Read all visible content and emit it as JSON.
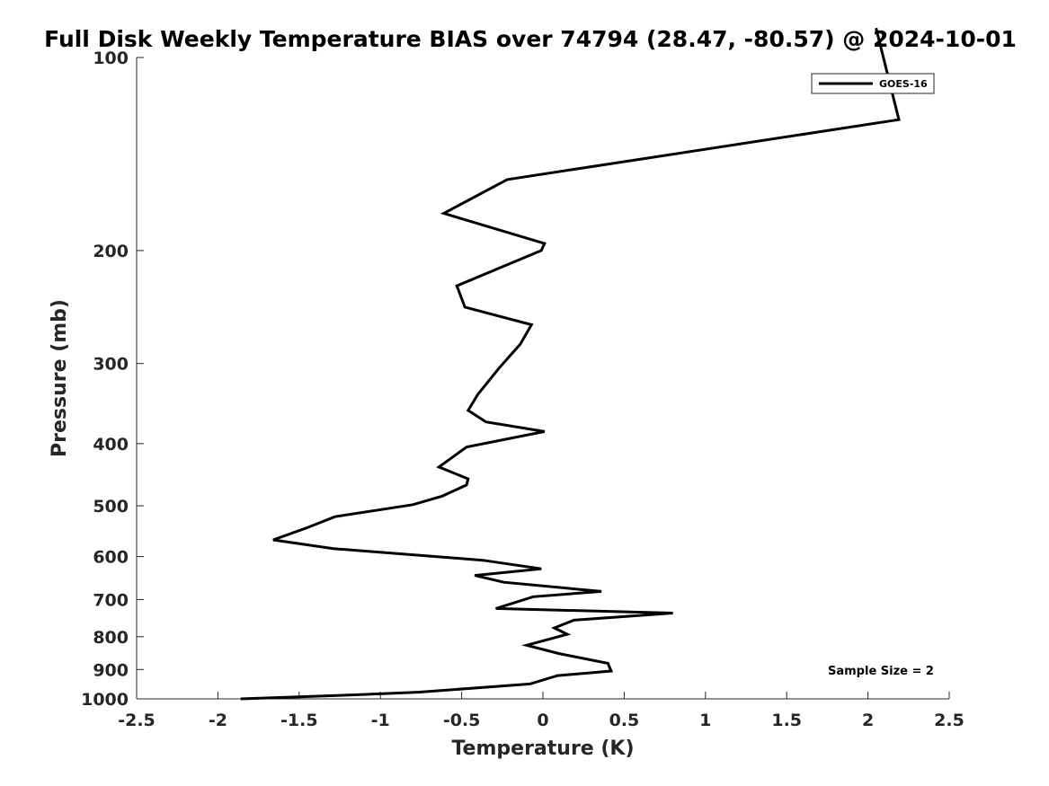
{
  "chart_data": {
    "type": "line",
    "title": "Full Disk Weekly Temperature BIAS over 74794 (28.47, -80.57) @ 2024-10-01",
    "xlabel": "Temperature (K)",
    "ylabel": "Pressure (mb)",
    "xlim": [
      -2.5,
      2.5
    ],
    "ylim": [
      1000,
      100
    ],
    "y_scale": "log",
    "y_reversed": true,
    "x_ticks": [
      -2.5,
      -2,
      -1.5,
      -1,
      -0.5,
      0,
      0.5,
      1,
      1.5,
      2,
      2.5
    ],
    "x_tick_labels": [
      "-2.5",
      "-2",
      "-1.5",
      "-1",
      "-0.5",
      "0",
      "0.5",
      "1",
      "1.5",
      "2",
      "2.5"
    ],
    "y_ticks": [
      100,
      200,
      300,
      400,
      500,
      600,
      700,
      800,
      900,
      1000
    ],
    "y_tick_labels": [
      "100",
      "200",
      "300",
      "400",
      "500",
      "600",
      "700",
      "800",
      "900",
      "1000"
    ],
    "grid": false,
    "legend_position": "top-right",
    "color": "#000000",
    "series": [
      {
        "name": "GOES-16",
        "points": [
          [
            2.05,
            90
          ],
          [
            2.19,
            125
          ],
          [
            -0.22,
            155
          ],
          [
            -0.61,
            175
          ],
          [
            0.01,
            195
          ],
          [
            -0.01,
            200
          ],
          [
            -0.53,
            227
          ],
          [
            -0.48,
            245
          ],
          [
            -0.07,
            261
          ],
          [
            -0.14,
            280
          ],
          [
            -0.27,
            305
          ],
          [
            -0.4,
            335
          ],
          [
            -0.46,
            355
          ],
          [
            -0.35,
            370
          ],
          [
            0.01,
            383
          ],
          [
            -0.47,
            405
          ],
          [
            -0.64,
            435
          ],
          [
            -0.46,
            454
          ],
          [
            -0.47,
            464
          ],
          [
            -0.62,
            483
          ],
          [
            -0.8,
            498
          ],
          [
            -1.28,
            520
          ],
          [
            -1.46,
            542
          ],
          [
            -1.66,
            565
          ],
          [
            -1.29,
            583
          ],
          [
            -0.37,
            608
          ],
          [
            -0.01,
            627
          ],
          [
            -0.42,
            642
          ],
          [
            -0.24,
            658
          ],
          [
            0.36,
            680
          ],
          [
            -0.06,
            693
          ],
          [
            -0.29,
            723
          ],
          [
            0.8,
            735
          ],
          [
            0.19,
            754
          ],
          [
            0.07,
            775
          ],
          [
            0.15,
            793
          ],
          [
            -0.1,
            825
          ],
          [
            0.1,
            850
          ],
          [
            0.4,
            880
          ],
          [
            0.42,
            905
          ],
          [
            0.09,
            920
          ],
          [
            -0.08,
            948
          ],
          [
            -0.76,
            976
          ],
          [
            -1.12,
            985
          ],
          [
            -1.86,
            1000
          ]
        ]
      }
    ],
    "annotation": "Sample Size = 2"
  }
}
